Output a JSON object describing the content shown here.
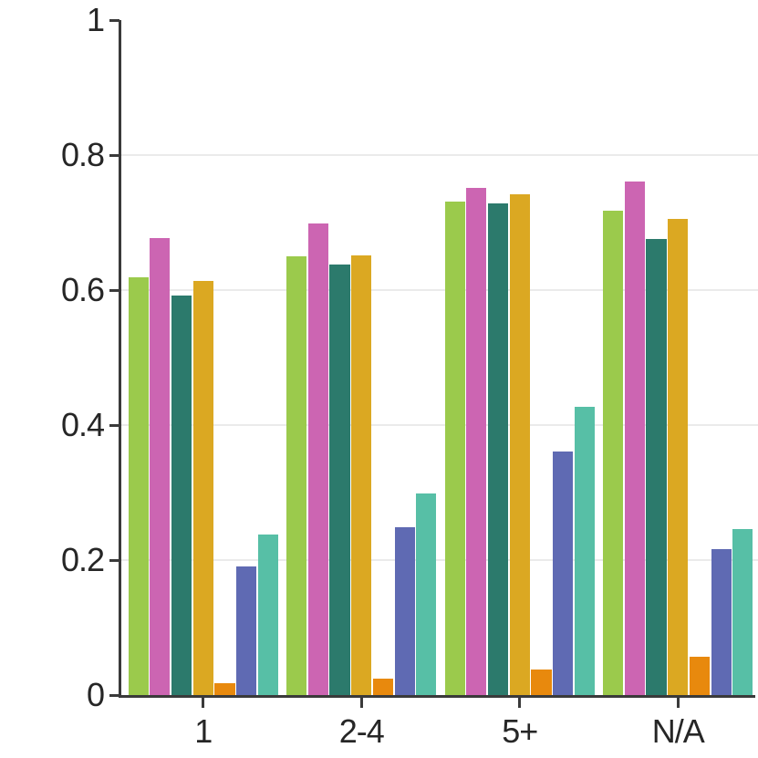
{
  "chart_data": {
    "type": "bar",
    "title": "",
    "xlabel": "",
    "ylabel": "",
    "categories": [
      "1",
      "2-4",
      "5+",
      "N/A"
    ],
    "series": [
      {
        "name": "green",
        "color": "#9bca4c",
        "values": [
          0.619,
          0.65,
          0.731,
          0.717
        ]
      },
      {
        "name": "magenta",
        "color": "#cc65b2",
        "values": [
          0.677,
          0.698,
          0.752,
          0.761
        ]
      },
      {
        "name": "teal",
        "color": "#2c7a6c",
        "values": [
          0.592,
          0.638,
          0.729,
          0.676
        ]
      },
      {
        "name": "gold",
        "color": "#dba822",
        "values": [
          0.614,
          0.652,
          0.742,
          0.705
        ]
      },
      {
        "name": "orange",
        "color": "#e8890d",
        "values": [
          0.018,
          0.024,
          0.038,
          0.057
        ]
      },
      {
        "name": "blue",
        "color": "#5f6ab3",
        "values": [
          0.191,
          0.248,
          0.361,
          0.216
        ]
      },
      {
        "name": "turquoise",
        "color": "#57bfa6",
        "values": [
          0.238,
          0.298,
          0.427,
          0.246
        ]
      }
    ],
    "ylim": [
      0,
      1
    ],
    "yticks": [
      0,
      0.2,
      0.4,
      0.6,
      0.8,
      1
    ],
    "ytick_labels": [
      "0",
      "0.2",
      "0.4",
      "0.6",
      "0.8",
      "1"
    ],
    "grid": "horizontal gridlines at 0.2, 0.4, 0.6, 0.8",
    "legend": "none"
  },
  "colors": {
    "background": "#ffffff",
    "axis": "#3a3a3a",
    "tick_text": "#262626",
    "gridline": "#ebebeb"
  }
}
